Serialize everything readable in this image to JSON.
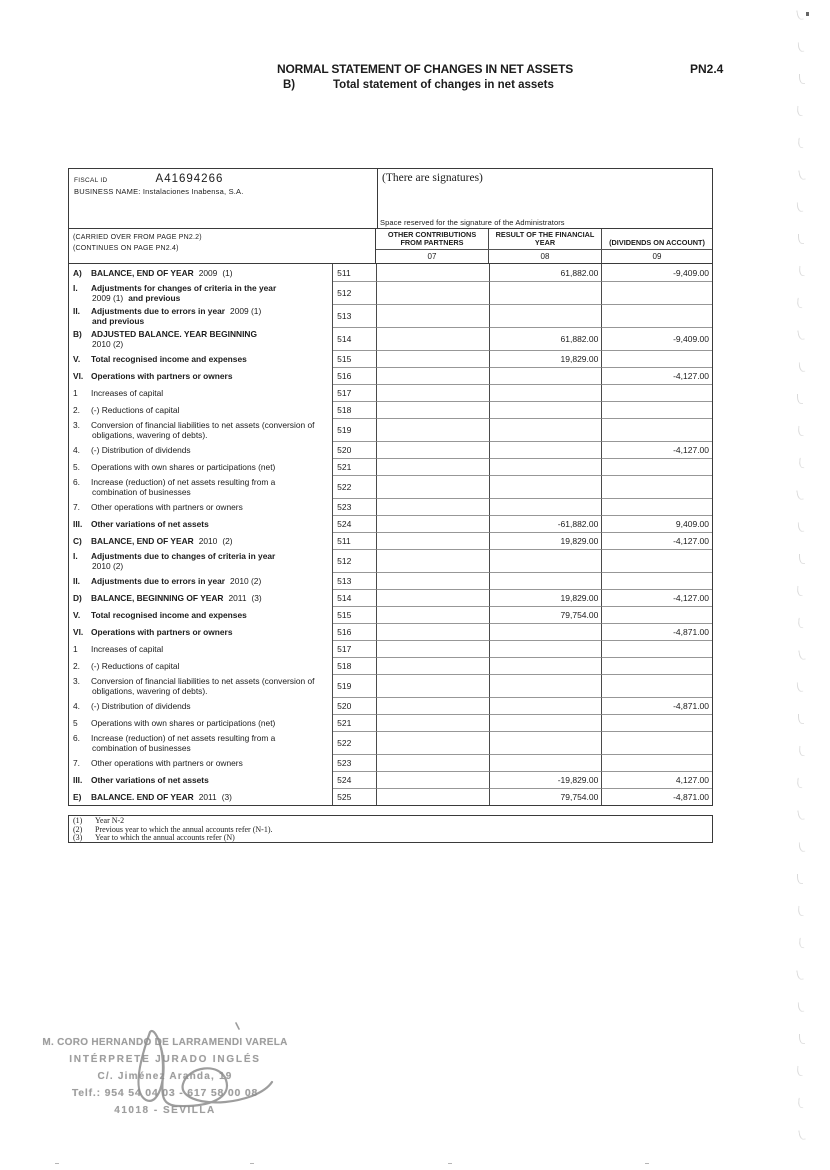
{
  "page": {
    "title": "NORMAL STATEMENT OF CHANGES IN NET ASSETS",
    "page_code": "PN2.4",
    "subtitle_prefix": "B)",
    "subtitle": "Total statement of changes in net assets"
  },
  "info": {
    "fiscal_id_label": "FISCAL ID",
    "fiscal_id": "A41694266",
    "business_name_label": "BUSINESS NAME:",
    "business_name": "Instalaciones Inabensa, S.A.",
    "signatures_note": "(There are signatures)",
    "signature_space_note": "Space reserved for the signature of the Administrators",
    "carried_over": "(CARRIED OVER FROM PAGE PN2.2)",
    "continues": "(CONTINUES ON PAGE PN2.4)"
  },
  "table": {
    "col_headers": [
      "OTHER CONTRIBUTIONS FROM PARTNERS",
      "RESULT OF THE FINANCIAL YEAR",
      "(DIVIDENDS ON ACCOUNT)"
    ],
    "col_numbers": [
      "07",
      "08",
      "09"
    ],
    "rows": [
      {
        "c": "511",
        "v": [
          "",
          "61,882.00",
          "-9,409.00"
        ],
        "l": [
          [
            {
              "t": "A)",
              "b": 1
            },
            {
              "t": "BALANCE, END OF YEAR",
              "b": 1
            },
            {
              "t": "2009",
              "b": 0
            },
            {
              "t": "(1)",
              "b": 0
            }
          ]
        ]
      },
      {
        "c": "512",
        "v": [
          "",
          "",
          ""
        ],
        "l": [
          [
            {
              "t": "I.",
              "b": 1
            },
            {
              "t": "Adjustments for changes of criteria in the year",
              "b": 1
            }
          ],
          [
            {
              "t": "2009 (1)",
              "b": 0
            },
            {
              "t": "and previous",
              "b": 1
            }
          ]
        ]
      },
      {
        "c": "513",
        "v": [
          "",
          "",
          ""
        ],
        "l": [
          [
            {
              "t": "II.",
              "b": 1
            },
            {
              "t": "Adjustments due to errors in year",
              "b": 1
            },
            {
              "t": "2009 (1)",
              "b": 0
            }
          ],
          [
            {
              "t": "and previous",
              "b": 1
            }
          ]
        ]
      },
      {
        "c": "514",
        "v": [
          "",
          "61,882.00",
          "-9,409.00"
        ],
        "l": [
          [
            {
              "t": "B)",
              "b": 1
            },
            {
              "t": "ADJUSTED BALANCE. YEAR BEGINNING",
              "b": 1
            }
          ],
          [
            {
              "t": "2010 (2)",
              "b": 0
            }
          ]
        ]
      },
      {
        "c": "515",
        "v": [
          "",
          "19,829.00",
          ""
        ],
        "l": [
          [
            {
              "t": "V.",
              "b": 1
            },
            {
              "t": "Total recognised income and expenses",
              "b": 1
            }
          ]
        ]
      },
      {
        "c": "516",
        "v": [
          "",
          "",
          "-4,127.00"
        ],
        "l": [
          [
            {
              "t": "VI.",
              "b": 1
            },
            {
              "t": "Operations with partners or owners",
              "b": 1
            }
          ]
        ]
      },
      {
        "c": "517",
        "v": [
          "",
          "",
          ""
        ],
        "l": [
          [
            {
              "t": "1",
              "b": 0
            },
            {
              "t": "Increases of capital",
              "b": 0
            }
          ]
        ]
      },
      {
        "c": "518",
        "v": [
          "",
          "",
          ""
        ],
        "l": [
          [
            {
              "t": "2.",
              "b": 0
            },
            {
              "t": "(-) Reductions of capital",
              "b": 0
            }
          ]
        ]
      },
      {
        "c": "519",
        "v": [
          "",
          "",
          ""
        ],
        "l": [
          [
            {
              "t": "3.",
              "b": 0
            },
            {
              "t": "Conversion of financial liabilities to net assets (conversion of",
              "b": 0
            }
          ],
          [
            {
              "t": "obligations, wavering of debts).",
              "b": 0
            }
          ]
        ]
      },
      {
        "c": "520",
        "v": [
          "",
          "",
          "-4,127.00"
        ],
        "l": [
          [
            {
              "t": "4.",
              "b": 0
            },
            {
              "t": "(-) Distribution of dividends",
              "b": 0
            }
          ]
        ]
      },
      {
        "c": "521",
        "v": [
          "",
          "",
          ""
        ],
        "l": [
          [
            {
              "t": "5.",
              "b": 0
            },
            {
              "t": "Operations with own shares or participations (net)",
              "b": 0
            }
          ]
        ]
      },
      {
        "c": "522",
        "v": [
          "",
          "",
          ""
        ],
        "l": [
          [
            {
              "t": "6.",
              "b": 0
            },
            {
              "t": "Increase (reduction) of net assets resulting from a",
              "b": 0
            }
          ],
          [
            {
              "t": "combination of businesses",
              "b": 0
            }
          ]
        ]
      },
      {
        "c": "523",
        "v": [
          "",
          "",
          ""
        ],
        "l": [
          [
            {
              "t": "7.",
              "b": 0
            },
            {
              "t": "Other operations with partners or owners",
              "b": 0
            }
          ]
        ]
      },
      {
        "c": "524",
        "v": [
          "",
          "-61,882.00",
          "9,409.00"
        ],
        "l": [
          [
            {
              "t": "III.",
              "b": 1
            },
            {
              "t": "Other variations of net assets",
              "b": 1
            }
          ]
        ]
      },
      {
        "c": "511",
        "v": [
          "",
          "19,829.00",
          "-4,127.00"
        ],
        "l": [
          [
            {
              "t": "C)",
              "b": 1
            },
            {
              "t": "BALANCE, END OF YEAR",
              "b": 1
            },
            {
              "t": "2010",
              "b": 0
            },
            {
              "t": "(2)",
              "b": 0
            }
          ]
        ]
      },
      {
        "c": "512",
        "v": [
          "",
          "",
          ""
        ],
        "l": [
          [
            {
              "t": "I.",
              "b": 1
            },
            {
              "t": "Adjustments due to changes of criteria in year",
              "b": 1
            }
          ],
          [
            {
              "t": "2010 (2)",
              "b": 0
            }
          ]
        ]
      },
      {
        "c": "513",
        "v": [
          "",
          "",
          ""
        ],
        "l": [
          [
            {
              "t": "II.",
              "b": 1
            },
            {
              "t": "Adjustments due to errors in year",
              "b": 1
            },
            {
              "t": "2010 (2)",
              "b": 0
            }
          ]
        ]
      },
      {
        "c": "514",
        "v": [
          "",
          "19,829.00",
          "-4,127.00"
        ],
        "l": [
          [
            {
              "t": "D)",
              "b": 1
            },
            {
              "t": "BALANCE, BEGINNING OF YEAR",
              "b": 1
            },
            {
              "t": "2011",
              "b": 0
            },
            {
              "t": "(3)",
              "b": 0
            }
          ]
        ]
      },
      {
        "c": "515",
        "v": [
          "",
          "79,754.00",
          ""
        ],
        "l": [
          [
            {
              "t": "V.",
              "b": 1
            },
            {
              "t": "Total recognised income and expenses",
              "b": 1
            }
          ]
        ]
      },
      {
        "c": "516",
        "v": [
          "",
          "",
          "-4,871.00"
        ],
        "l": [
          [
            {
              "t": "VI.",
              "b": 1
            },
            {
              "t": "Operations with partners or owners",
              "b": 1
            }
          ]
        ]
      },
      {
        "c": "517",
        "v": [
          "",
          "",
          ""
        ],
        "l": [
          [
            {
              "t": "1",
              "b": 0
            },
            {
              "t": "Increases of capital",
              "b": 0
            }
          ]
        ]
      },
      {
        "c": "518",
        "v": [
          "",
          "",
          ""
        ],
        "l": [
          [
            {
              "t": "2.",
              "b": 0
            },
            {
              "t": "(-) Reductions of capital",
              "b": 0
            }
          ]
        ]
      },
      {
        "c": "519",
        "v": [
          "",
          "",
          ""
        ],
        "l": [
          [
            {
              "t": "3.",
              "b": 0
            },
            {
              "t": "Conversion of financial liabilities to net assets (conversion of",
              "b": 0
            }
          ],
          [
            {
              "t": "obligations, wavering of debts).",
              "b": 0
            }
          ]
        ]
      },
      {
        "c": "520",
        "v": [
          "",
          "",
          "-4,871.00"
        ],
        "l": [
          [
            {
              "t": "4.",
              "b": 0
            },
            {
              "t": "(-) Distribution of dividends",
              "b": 0
            }
          ]
        ]
      },
      {
        "c": "521",
        "v": [
          "",
          "",
          ""
        ],
        "l": [
          [
            {
              "t": "5",
              "b": 0
            },
            {
              "t": "Operations with own shares or participations (net)",
              "b": 0
            }
          ]
        ]
      },
      {
        "c": "522",
        "v": [
          "",
          "",
          ""
        ],
        "l": [
          [
            {
              "t": "6.",
              "b": 0
            },
            {
              "t": "Increase (reduction) of net assets resulting from a",
              "b": 0
            }
          ],
          [
            {
              "t": "combination of businesses",
              "b": 0
            }
          ]
        ]
      },
      {
        "c": "523",
        "v": [
          "",
          "",
          ""
        ],
        "l": [
          [
            {
              "t": "7.",
              "b": 0
            },
            {
              "t": "Other operations with partners or owners",
              "b": 0
            }
          ]
        ]
      },
      {
        "c": "524",
        "v": [
          "",
          "-19,829.00",
          "4,127.00"
        ],
        "l": [
          [
            {
              "t": "III.",
              "b": 1
            },
            {
              "t": "Other variations of net assets",
              "b": 1
            }
          ]
        ]
      },
      {
        "c": "525",
        "v": [
          "",
          "79,754.00",
          "-4,871.00"
        ],
        "l": [
          [
            {
              "t": "E)",
              "b": 1
            },
            {
              "t": "BALANCE. END OF YEAR",
              "b": 1
            },
            {
              "t": "2011",
              "b": 0
            },
            {
              "t": "(3)",
              "b": 0
            }
          ]
        ]
      }
    ]
  },
  "footnotes": [
    {
      "m": "(1)",
      "t": "Year N-2"
    },
    {
      "m": "(2)",
      "t": "Previous year to which the annual accounts refer (N-1)."
    },
    {
      "m": "(3)",
      "t": "Year to which the annual accounts refer (N)"
    }
  ],
  "stamp": {
    "lines": [
      "M. CORO HERNANDO DE LARRAMENDI VARELA",
      "INTÉRPRETE JURADO INGLÉS",
      "C/. Jiménez Aranda, 19",
      "Telf.: 954 54 04 03 - 617 58 00 08",
      "41018 - SEVILLA"
    ]
  },
  "colors": {
    "ink": "#1c1c1c",
    "stamp_gray": "#9e9e9e"
  }
}
